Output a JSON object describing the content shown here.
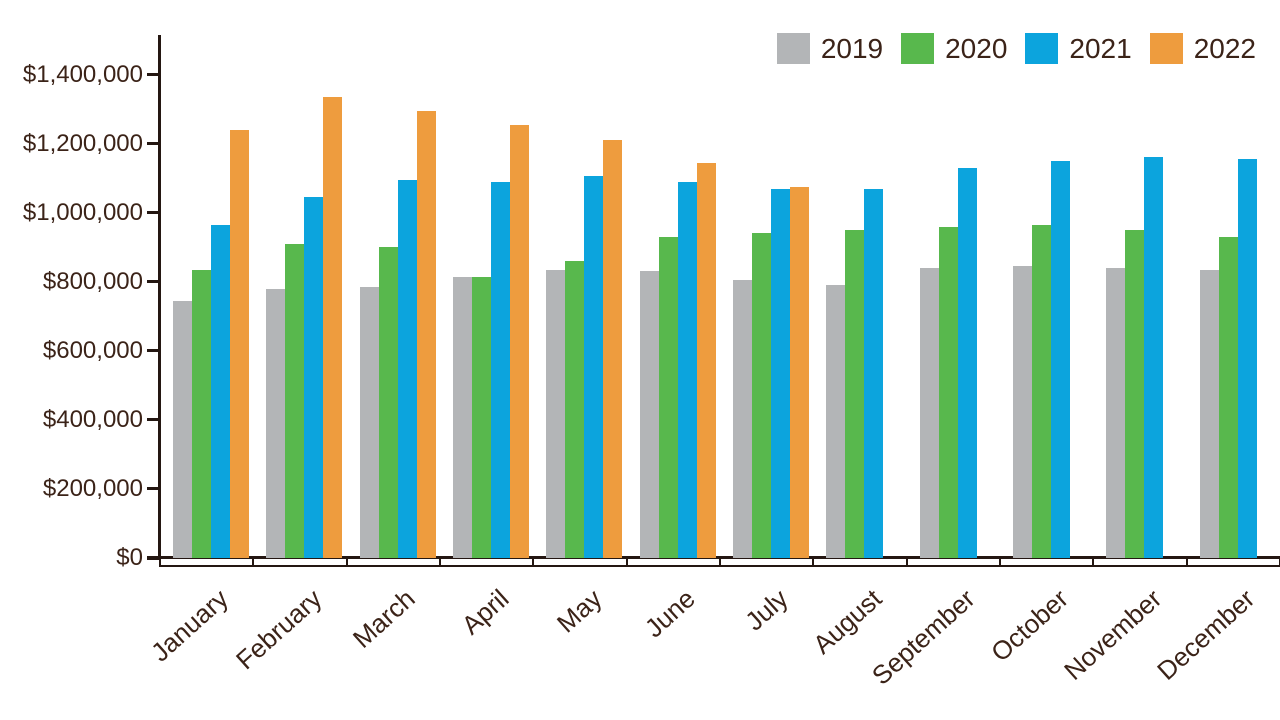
{
  "chart_data": {
    "type": "bar",
    "title": "",
    "xlabel": "",
    "ylabel": "",
    "categories": [
      "January",
      "February",
      "March",
      "April",
      "May",
      "June",
      "July",
      "August",
      "September",
      "October",
      "November",
      "December"
    ],
    "series": [
      {
        "name": "2019",
        "color": "#b3b5b7",
        "values": [
          745000,
          780000,
          785000,
          815000,
          835000,
          830000,
          805000,
          790000,
          840000,
          845000,
          840000,
          835000
        ]
      },
      {
        "name": "2020",
        "color": "#58b84d",
        "values": [
          835000,
          910000,
          900000,
          815000,
          860000,
          930000,
          940000,
          950000,
          960000,
          965000,
          950000,
          930000
        ]
      },
      {
        "name": "2021",
        "color": "#0ca4dd",
        "values": [
          965000,
          1045000,
          1095000,
          1090000,
          1105000,
          1090000,
          1070000,
          1070000,
          1130000,
          1150000,
          1160000,
          1155000
        ]
      },
      {
        "name": "2022",
        "color": "#ee9c3e",
        "values": [
          1240000,
          1335000,
          1295000,
          1255000,
          1210000,
          1145000,
          1075000,
          null,
          null,
          null,
          null,
          null
        ]
      }
    ],
    "y_ticks": [
      "$1,400,000",
      "$1,200,000",
      "$1,000,000",
      "$800,000",
      "$600,000",
      "$400,000",
      "$200,000",
      "$0"
    ],
    "y_tick_values": [
      1400000,
      1200000,
      1000000,
      800000,
      600000,
      400000,
      200000,
      0
    ],
    "ylim": [
      0,
      1400000
    ],
    "grid": false,
    "legend_position": "top-right",
    "colors": {
      "text": "#3b2318",
      "axis": "#241712"
    }
  }
}
